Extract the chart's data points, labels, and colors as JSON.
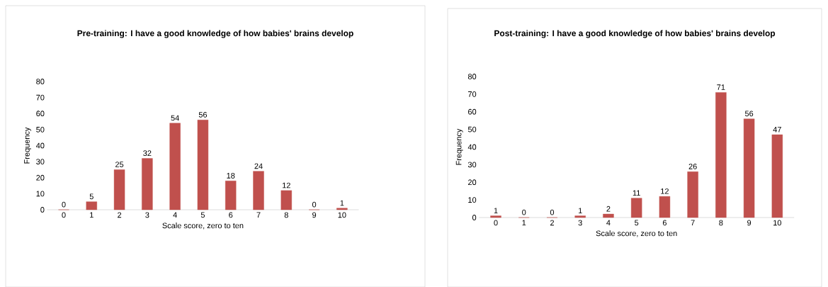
{
  "chart_data": [
    {
      "type": "bar",
      "title": "Pre-training: I have a good knowledge of how babies' brains develop",
      "xlabel": "Scale score, zero to ten",
      "ylabel": "Frequency",
      "categories": [
        "0",
        "1",
        "2",
        "3",
        "4",
        "5",
        "6",
        "7",
        "8",
        "9",
        "10"
      ],
      "values": [
        0,
        5,
        25,
        32,
        54,
        56,
        18,
        24,
        12,
        0,
        1
      ],
      "color": "#c0504d",
      "ylim": [
        0,
        80
      ],
      "yticks": [
        0,
        10,
        20,
        30,
        40,
        50,
        60,
        70,
        80
      ],
      "data_labels": true
    },
    {
      "type": "bar",
      "title": "Post-training: I have a good knowledge of how babies' brains develop",
      "xlabel": "Scale score, zero to ten",
      "ylabel": "Frequency",
      "categories": [
        "0",
        "1",
        "2",
        "3",
        "4",
        "5",
        "6",
        "7",
        "8",
        "9",
        "10"
      ],
      "values": [
        1,
        0,
        0,
        1,
        2,
        11,
        12,
        26,
        71,
        56,
        47
      ],
      "color": "#c0504d",
      "ylim": [
        0,
        80
      ],
      "yticks": [
        0,
        10,
        20,
        30,
        40,
        50,
        60,
        70,
        80
      ],
      "data_labels": true
    }
  ]
}
